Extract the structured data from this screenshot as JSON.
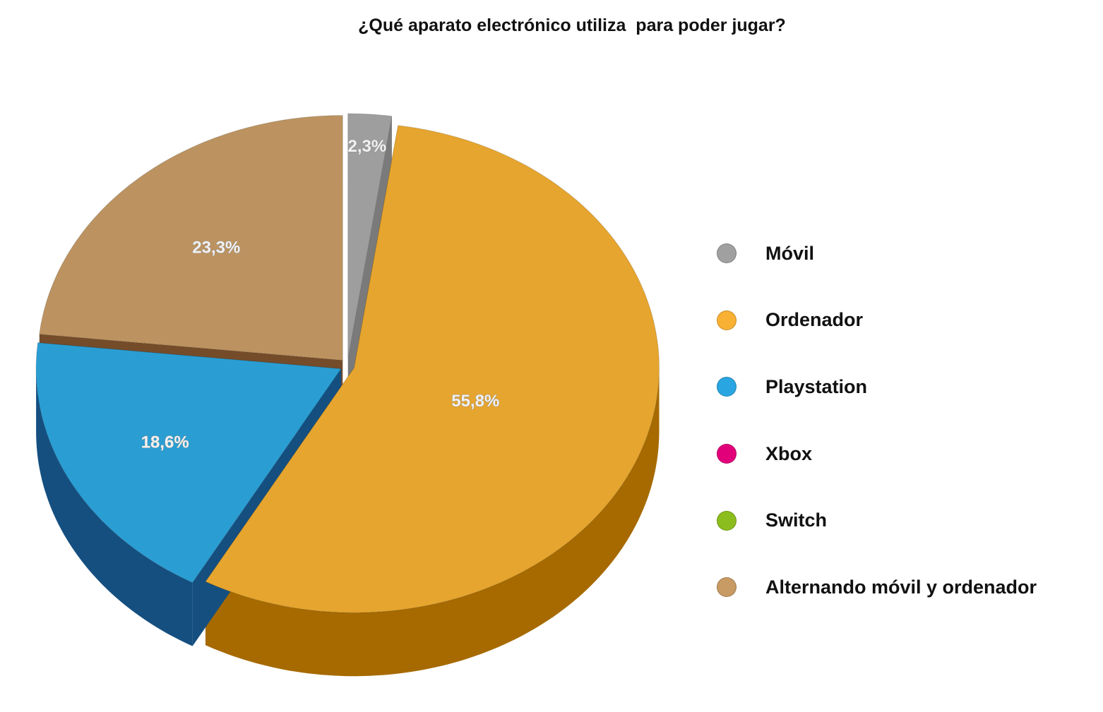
{
  "chart_data": {
    "type": "pie",
    "title": "¿Qué aparato electrónico utiliza  para poder jugar?",
    "categories": [
      "Móvil",
      "Ordenador",
      "Playstation",
      "Xbox",
      "Switch",
      "Alternando móvil y ordenador"
    ],
    "values": [
      2.3,
      55.8,
      18.6,
      0,
      0,
      23.3
    ],
    "data_labels": [
      "2,3%",
      "55,8%",
      "18,6%",
      "",
      "",
      "23,3%"
    ],
    "colors": [
      "#9e9e9e",
      "#e6a52e",
      "#2a9ed3",
      "#e2007a",
      "#8cbd1e",
      "#bc9360"
    ],
    "side_colors": [
      "#7a7a7a",
      "#a66a00",
      "#154f80",
      "#90004e",
      "#5a8010",
      "#744c2a"
    ],
    "legend_colors": [
      "#a0a0a0",
      "#f8b133",
      "#29a6e1",
      "#e2007a",
      "#8cbd1e",
      "#c89a64"
    ],
    "legend_position": "right"
  }
}
